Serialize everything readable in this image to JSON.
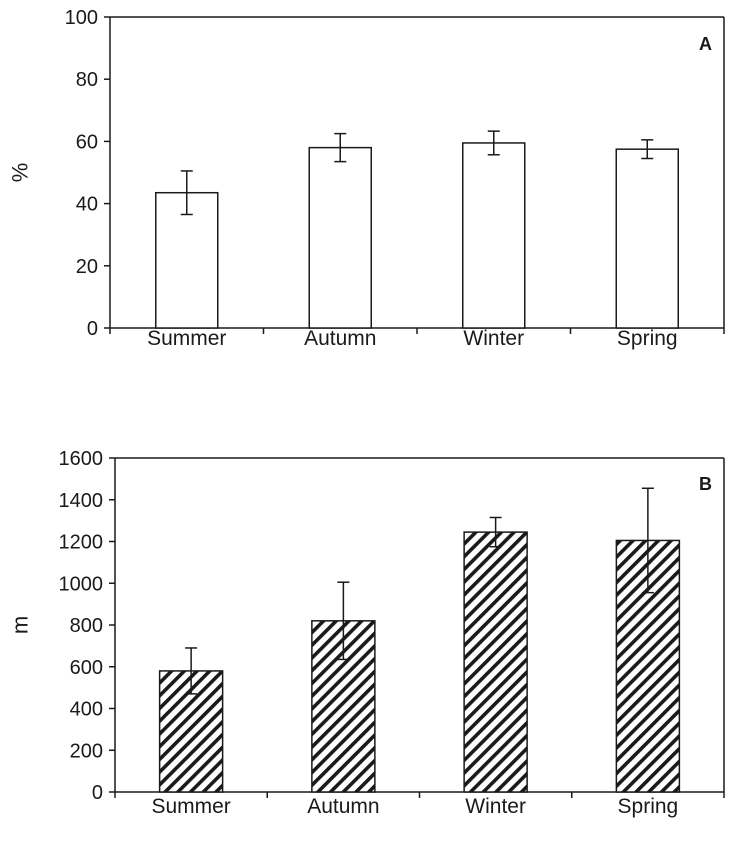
{
  "chart_data": [
    {
      "type": "bar",
      "panel_label": "A",
      "title": "",
      "xlabel": "",
      "ylabel": "%",
      "categories": [
        "Summer",
        "Autumn",
        "Winter",
        "Spring"
      ],
      "series": [
        {
          "values": [
            43.5,
            58,
            59.5,
            57.5
          ],
          "error": [
            7,
            4.5,
            3.8,
            3
          ]
        }
      ],
      "ylim": [
        0,
        100
      ],
      "yticks": [
        "0",
        "20",
        "40",
        "60",
        "80",
        "100"
      ],
      "bar_fill": "#ffffff",
      "bar_pattern": "none",
      "grid": false,
      "legend": "none"
    },
    {
      "type": "bar",
      "panel_label": "B",
      "title": "",
      "xlabel": "",
      "ylabel": "m",
      "categories": [
        "Summer",
        "Autumn",
        "Winter",
        "Spring"
      ],
      "series": [
        {
          "values": [
            580,
            820,
            1245,
            1205
          ],
          "error": [
            110,
            185,
            70,
            250
          ]
        }
      ],
      "ylim": [
        0,
        1600
      ],
      "yticks": [
        "0",
        "200",
        "400",
        "600",
        "800",
        "1000",
        "1200",
        "1400",
        "1600"
      ],
      "bar_fill": "#ffffff",
      "bar_pattern": "diagonal-hatch",
      "grid": false,
      "legend": "none"
    }
  ],
  "colors": {
    "ink": "#1a1a1a",
    "background": "#ffffff"
  }
}
